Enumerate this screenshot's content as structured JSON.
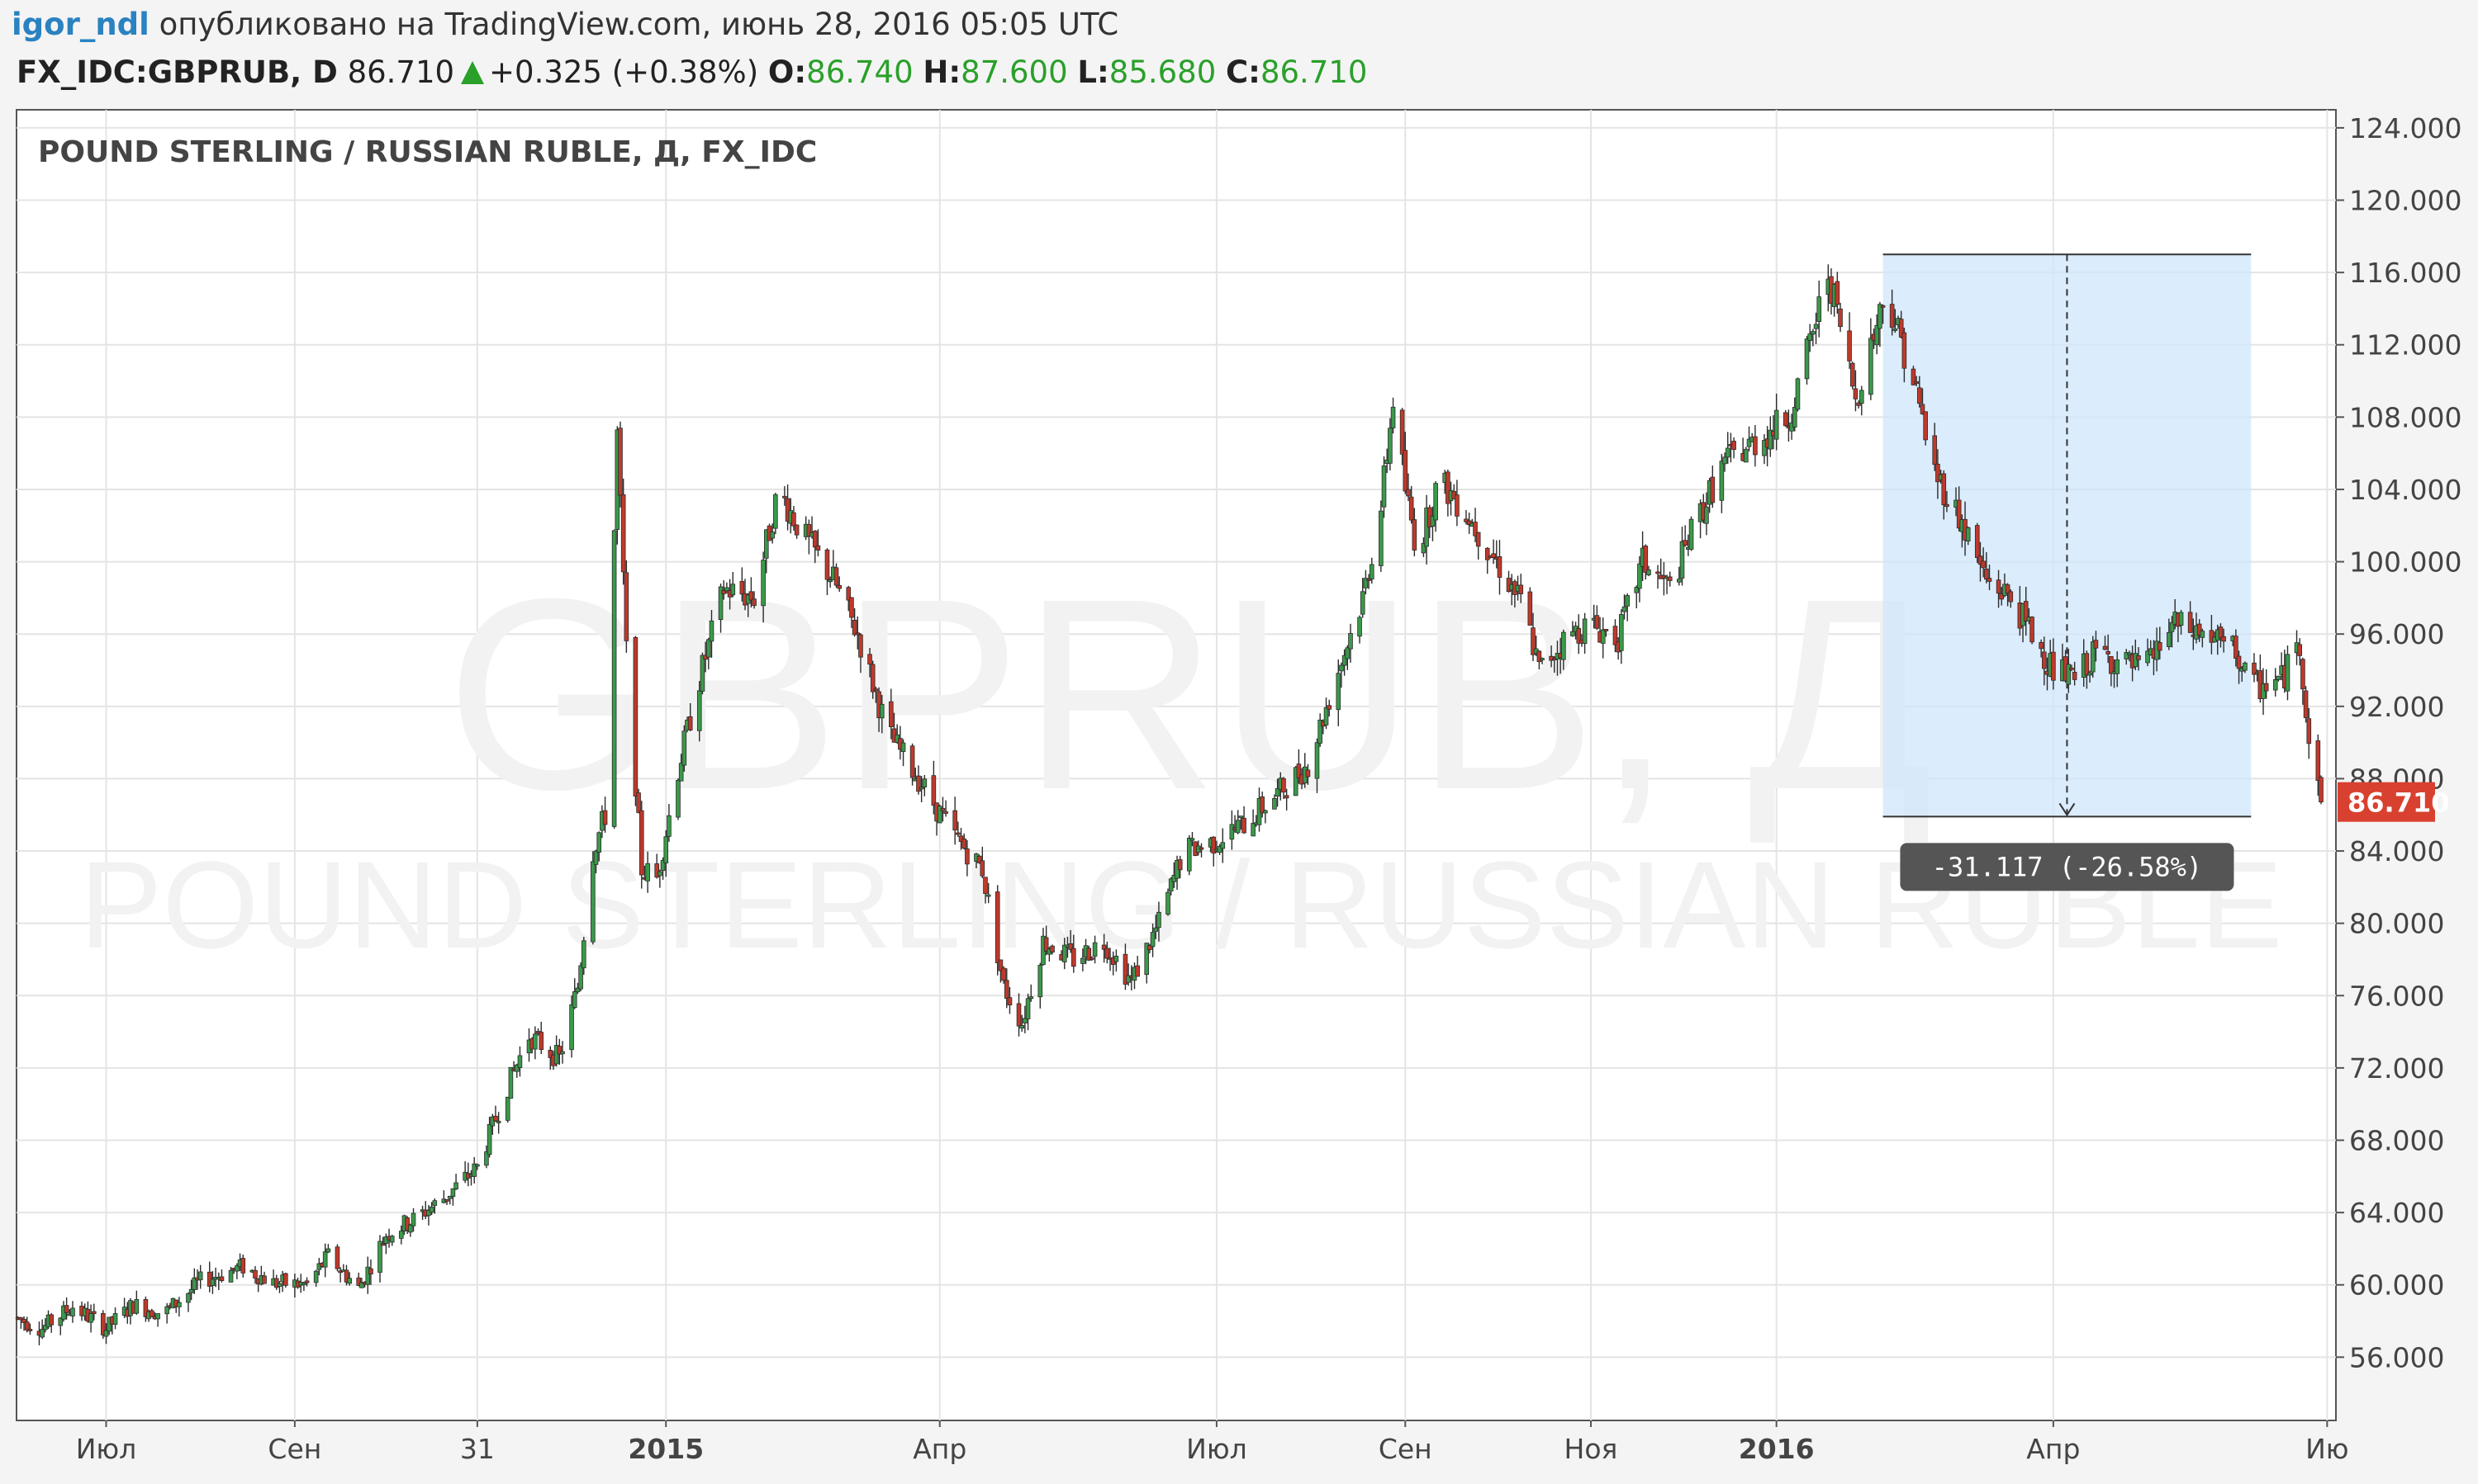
{
  "header": {
    "user": "igor_ndl",
    "published": "опубликовано на TradingView.com, июнь 28, 2016 05:05 UTC"
  },
  "symbol_bar": {
    "symbol": "FX_IDC:GBPRUB, D",
    "last": "86.710",
    "change": "+0.325 (+0.38%)",
    "o_label": "O:",
    "o_value": "86.740",
    "h_label": "H:",
    "h_value": "87.600",
    "l_label": "L:",
    "l_value": "85.680",
    "c_label": "C:",
    "c_value": "86.710"
  },
  "chart_data": {
    "type": "candlestick",
    "title": "POUND STERLING / RUSSIAN RUBLE, Д, FX_IDC",
    "watermark_symbol": "GBPRUB, Д",
    "watermark_name": "POUND STERLING / RUSSIAN RUBLE",
    "ylim": [
      52.5,
      125
    ],
    "y_ticks": [
      56,
      60,
      64,
      68,
      72,
      76,
      80,
      84,
      88,
      92,
      96,
      100,
      104,
      108,
      112,
      116,
      120,
      124
    ],
    "y_tick_labels": [
      "56.000",
      "60.000",
      "64.000",
      "68.000",
      "72.000",
      "76.000",
      "80.000",
      "84.000",
      "88.000",
      "92.000",
      "96.000",
      "100.000",
      "104.000",
      "108.000",
      "112.000",
      "116.000",
      "120.000",
      "124.000"
    ],
    "x_range": [
      "2014-06-01",
      "2016-06-28"
    ],
    "x_ticks": [
      {
        "date": "2014-07-01",
        "label": "Июл",
        "bold": false
      },
      {
        "date": "2014-09-01",
        "label": "Сен",
        "bold": false
      },
      {
        "date": "2014-10-31",
        "label": "31",
        "bold": false
      },
      {
        "date": "2015-01-01",
        "label": "2015",
        "bold": true
      },
      {
        "date": "2015-04-01",
        "label": "Апр",
        "bold": false
      },
      {
        "date": "2015-07-01",
        "label": "Июл",
        "bold": false
      },
      {
        "date": "2015-09-01",
        "label": "Сен",
        "bold": false
      },
      {
        "date": "2015-11-01",
        "label": "Ноя",
        "bold": false
      },
      {
        "date": "2016-01-01",
        "label": "2016",
        "bold": true
      },
      {
        "date": "2016-04-01",
        "label": "Апр",
        "bold": false
      },
      {
        "date": "2016-06-30",
        "label": "Ию",
        "bold": false
      }
    ],
    "last_price": 86.71,
    "last_price_label": "86.710",
    "measure": {
      "from_date": "2016-02-05",
      "to_date": "2016-06-05",
      "high": 117.0,
      "low": 85.9,
      "label": "-31.117 (-26.58%)"
    },
    "up_color": "#3a9a4a",
    "down_color": "#c0392b",
    "keypoints": [
      [
        "2014-06-01",
        58.2
      ],
      [
        "2014-06-10",
        57.6
      ],
      [
        "2014-06-20",
        58.8
      ],
      [
        "2014-07-01",
        57.6
      ],
      [
        "2014-07-10",
        58.9
      ],
      [
        "2014-07-20",
        58.4
      ],
      [
        "2014-08-01",
        60.2
      ],
      [
        "2014-08-15",
        61.0
      ],
      [
        "2014-08-25",
        60.1
      ],
      [
        "2014-09-05",
        60.0
      ],
      [
        "2014-09-12",
        61.6
      ],
      [
        "2014-09-22",
        59.8
      ],
      [
        "2014-10-01",
        62.8
      ],
      [
        "2014-10-10",
        63.6
      ],
      [
        "2014-10-20",
        64.8
      ],
      [
        "2014-10-31",
        66.5
      ],
      [
        "2014-11-10",
        71.0
      ],
      [
        "2014-11-17",
        73.8
      ],
      [
        "2014-11-27",
        72.5
      ],
      [
        "2014-12-03",
        76.5
      ],
      [
        "2014-12-08",
        84.0
      ],
      [
        "2014-12-12",
        86.0
      ],
      [
        "2014-12-16",
        107.0
      ],
      [
        "2014-12-19",
        95.0
      ],
      [
        "2014-12-24",
        83.0
      ],
      [
        "2014-12-29",
        82.5
      ],
      [
        "2015-01-05",
        88.5
      ],
      [
        "2015-01-12",
        93.5
      ],
      [
        "2015-01-20",
        98.5
      ],
      [
        "2015-01-30",
        98.0
      ],
      [
        "2015-02-07",
        104.0
      ],
      [
        "2015-02-15",
        101.5
      ],
      [
        "2015-02-25",
        99.0
      ],
      [
        "2015-03-05",
        96.0
      ],
      [
        "2015-03-15",
        90.5
      ],
      [
        "2015-03-25",
        88.0
      ],
      [
        "2015-04-05",
        85.0
      ],
      [
        "2015-04-15",
        83.0
      ],
      [
        "2015-04-22",
        76.5
      ],
      [
        "2015-04-28",
        74.5
      ],
      [
        "2015-05-05",
        79.0
      ],
      [
        "2015-05-15",
        78.0
      ],
      [
        "2015-05-25",
        79.0
      ],
      [
        "2015-06-03",
        76.8
      ],
      [
        "2015-06-12",
        80.0
      ],
      [
        "2015-06-20",
        84.0
      ],
      [
        "2015-06-30",
        84.5
      ],
      [
        "2015-07-10",
        85.5
      ],
      [
        "2015-07-20",
        87.0
      ],
      [
        "2015-07-31",
        88.8
      ],
      [
        "2015-08-10",
        94.0
      ],
      [
        "2015-08-18",
        98.0
      ],
      [
        "2015-08-24",
        103.0
      ],
      [
        "2015-08-28",
        109.0
      ],
      [
        "2015-09-01",
        104.0
      ],
      [
        "2015-09-05",
        100.5
      ],
      [
        "2015-09-12",
        104.5
      ],
      [
        "2015-09-20",
        103.0
      ],
      [
        "2015-10-01",
        100.0
      ],
      [
        "2015-10-10",
        97.5
      ],
      [
        "2015-10-15",
        94.0
      ],
      [
        "2015-10-25",
        96.0
      ],
      [
        "2015-11-01",
        96.5
      ],
      [
        "2015-11-10",
        95.8
      ],
      [
        "2015-11-18",
        100.0
      ],
      [
        "2015-11-27",
        98.5
      ],
      [
        "2015-12-05",
        102.0
      ],
      [
        "2015-12-15",
        105.5
      ],
      [
        "2015-12-24",
        106.5
      ],
      [
        "2016-01-05",
        108.0
      ],
      [
        "2016-01-12",
        112.0
      ],
      [
        "2016-01-18",
        116.0
      ],
      [
        "2016-01-22",
        113.0
      ],
      [
        "2016-01-27",
        109.0
      ],
      [
        "2016-02-01",
        112.0
      ],
      [
        "2016-02-06",
        115.0
      ],
      [
        "2016-02-15",
        110.0
      ],
      [
        "2016-02-22",
        105.0
      ],
      [
        "2016-03-01",
        102.5
      ],
      [
        "2016-03-10",
        99.0
      ],
      [
        "2016-03-18",
        98.0
      ],
      [
        "2016-03-25",
        96.0
      ],
      [
        "2016-04-01",
        94.0
      ],
      [
        "2016-04-08",
        93.5
      ],
      [
        "2016-04-15",
        95.0
      ],
      [
        "2016-04-22",
        94.5
      ],
      [
        "2016-05-01",
        94.0
      ],
      [
        "2016-05-10",
        96.5
      ],
      [
        "2016-05-20",
        96.0
      ],
      [
        "2016-05-31",
        95.0
      ],
      [
        "2016-06-05",
        93.0
      ],
      [
        "2016-06-15",
        93.5
      ],
      [
        "2016-06-21",
        95.5
      ],
      [
        "2016-06-24",
        90.0
      ],
      [
        "2016-06-28",
        86.71
      ]
    ]
  }
}
